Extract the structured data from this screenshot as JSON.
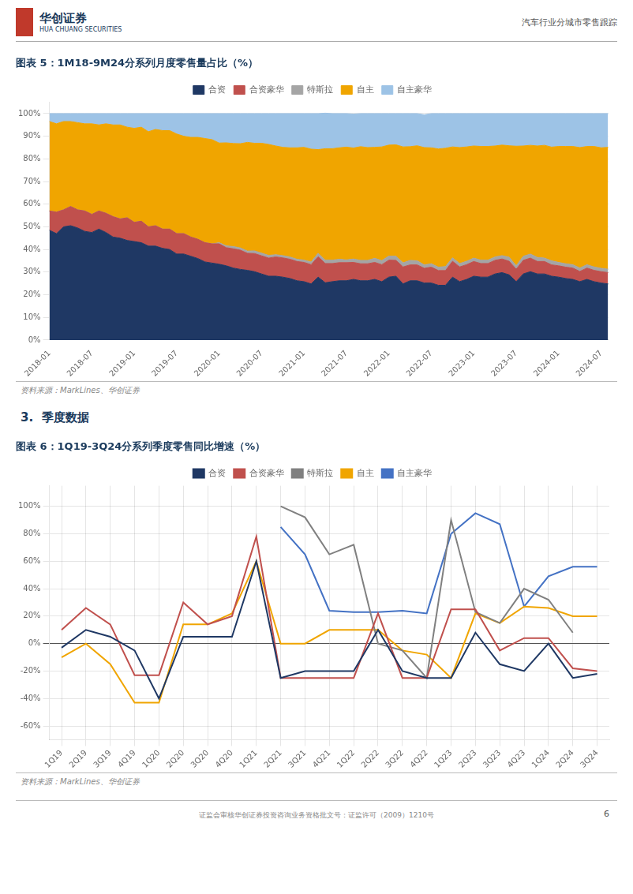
{
  "logo": [
    "华创证券",
    "HUA CHUANG SECURITIES"
  ],
  "header": "汽车行业分城市零售跟踪",
  "section_title": "3.  季度数据",
  "footer": "证监会审核华创证券投资咨询业务资格批文号：证监许可（2009）1210号",
  "page_number": "6",
  "chart_data": [
    {
      "type": "area",
      "title": "图表 5：1M18-9M24分系列月度零售量占比（%）",
      "annotations": [
        "资料来源：MarkLines、华创证券"
      ],
      "stacked": true,
      "legend": "top",
      "grid": "y",
      "categories": [
        "2018-01",
        null,
        null,
        null,
        null,
        null,
        "2018-07",
        null,
        null,
        null,
        null,
        null,
        "2019-01",
        null,
        null,
        null,
        null,
        null,
        "2019-07",
        null,
        null,
        null,
        null,
        null,
        "2020-01",
        null,
        null,
        null,
        null,
        null,
        "2020-07",
        null,
        null,
        null,
        null,
        null,
        "2021-01",
        null,
        null,
        null,
        null,
        null,
        "2021-07",
        null,
        null,
        null,
        null,
        null,
        "2022-01",
        null,
        null,
        null,
        null,
        null,
        "2022-07",
        null,
        null,
        null,
        null,
        null,
        "2023-01",
        null,
        null,
        null,
        null,
        null,
        "2023-07",
        null,
        null,
        null,
        null,
        null,
        "2024-01",
        null,
        null,
        null,
        null,
        null,
        "2024-07",
        null
      ],
      "ylim": [
        0,
        1.05
      ],
      "yticks": [
        {
          "value": 0,
          "label": "0%"
        },
        {
          "value": 0.1,
          "label": "10%"
        },
        {
          "value": 0.2,
          "label": "20%"
        },
        {
          "value": 0.3,
          "label": "30%"
        },
        {
          "value": 0.4,
          "label": "40%"
        },
        {
          "value": 0.5,
          "label": "50%"
        },
        {
          "value": 0.6,
          "label": "60%"
        },
        {
          "value": 0.7,
          "label": "70%"
        },
        {
          "value": 0.8,
          "label": "80%"
        },
        {
          "value": 0.9,
          "label": "90%"
        },
        {
          "value": 1.0,
          "label": "100%"
        }
      ],
      "series": [
        {
          "name": "合资",
          "color": "#1f3864",
          "values": [
            0.485,
            0.47,
            0.5,
            0.505,
            0.495,
            0.48,
            0.475,
            0.49,
            0.475,
            0.455,
            0.45,
            0.44,
            0.435,
            0.43,
            0.415,
            0.415,
            0.405,
            0.4,
            0.38,
            0.38,
            0.37,
            0.36,
            0.345,
            0.34,
            0.335,
            0.328,
            0.318,
            0.312,
            0.308,
            0.302,
            0.292,
            0.282,
            0.282,
            0.278,
            0.272,
            0.262,
            0.258,
            0.248,
            0.278,
            0.253,
            0.258,
            0.262,
            0.262,
            0.268,
            0.262,
            0.262,
            0.268,
            0.258,
            0.278,
            0.282,
            0.248,
            0.262,
            0.262,
            0.252,
            0.252,
            0.242,
            0.242,
            0.278,
            0.258,
            0.268,
            0.282,
            0.278,
            0.278,
            0.292,
            0.298,
            0.288,
            0.258,
            0.292,
            0.302,
            0.292,
            0.292,
            0.282,
            0.278,
            0.272,
            0.268,
            0.258,
            0.268,
            0.258,
            0.252,
            0.248
          ]
        },
        {
          "name": "合资豪华",
          "color": "#c0504d",
          "values": [
            0.085,
            0.095,
            0.075,
            0.085,
            0.08,
            0.09,
            0.08,
            0.08,
            0.085,
            0.09,
            0.085,
            0.1,
            0.085,
            0.095,
            0.085,
            0.09,
            0.085,
            0.09,
            0.09,
            0.09,
            0.085,
            0.085,
            0.085,
            0.085,
            0.09,
            0.08,
            0.085,
            0.085,
            0.075,
            0.08,
            0.08,
            0.08,
            0.085,
            0.085,
            0.085,
            0.085,
            0.085,
            0.085,
            0.09,
            0.085,
            0.08,
            0.08,
            0.08,
            0.075,
            0.075,
            0.075,
            0.075,
            0.075,
            0.075,
            0.07,
            0.075,
            0.07,
            0.07,
            0.065,
            0.07,
            0.065,
            0.065,
            0.07,
            0.065,
            0.065,
            0.065,
            0.06,
            0.06,
            0.06,
            0.06,
            0.06,
            0.055,
            0.06,
            0.06,
            0.055,
            0.055,
            0.05,
            0.05,
            0.05,
            0.05,
            0.045,
            0.05,
            0.05,
            0.05,
            0.05
          ]
        },
        {
          "name": "特斯拉",
          "color": "#a5a5a5",
          "values": [
            0.0,
            0.0,
            0.0,
            0.0,
            0.0,
            0.0,
            0.0,
            0.0,
            0.0,
            0.0,
            0.0,
            0.0,
            0.0,
            0.0,
            0.0,
            0.0,
            0.0,
            0.0,
            0.0,
            0.0,
            0.0,
            0.0,
            0.0,
            0.0,
            0.005,
            0.008,
            0.01,
            0.01,
            0.01,
            0.012,
            0.012,
            0.012,
            0.01,
            0.01,
            0.01,
            0.01,
            0.01,
            0.012,
            0.015,
            0.015,
            0.015,
            0.015,
            0.012,
            0.015,
            0.015,
            0.015,
            0.018,
            0.018,
            0.018,
            0.018,
            0.018,
            0.02,
            0.018,
            0.015,
            0.015,
            0.015,
            0.018,
            0.015,
            0.015,
            0.015,
            0.015,
            0.015,
            0.015,
            0.015,
            0.015,
            0.018,
            0.015,
            0.018,
            0.018,
            0.018,
            0.015,
            0.018,
            0.015,
            0.015,
            0.015,
            0.015,
            0.015,
            0.015,
            0.015,
            0.015
          ]
        },
        {
          "name": "自主",
          "color": "#f0a500",
          "values": [
            0.395,
            0.39,
            0.39,
            0.375,
            0.385,
            0.385,
            0.4,
            0.38,
            0.395,
            0.405,
            0.415,
            0.4,
            0.415,
            0.415,
            0.42,
            0.425,
            0.435,
            0.435,
            0.44,
            0.43,
            0.44,
            0.45,
            0.46,
            0.46,
            0.44,
            0.455,
            0.455,
            0.46,
            0.48,
            0.475,
            0.485,
            0.49,
            0.48,
            0.478,
            0.482,
            0.492,
            0.498,
            0.498,
            0.458,
            0.492,
            0.492,
            0.492,
            0.498,
            0.49,
            0.502,
            0.498,
            0.49,
            0.502,
            0.49,
            0.492,
            0.512,
            0.502,
            0.508,
            0.518,
            0.512,
            0.522,
            0.522,
            0.49,
            0.512,
            0.505,
            0.495,
            0.502,
            0.502,
            0.49,
            0.488,
            0.492,
            0.528,
            0.487,
            0.48,
            0.492,
            0.498,
            0.502,
            0.512,
            0.518,
            0.522,
            0.532,
            0.522,
            0.532,
            0.532,
            0.538
          ]
        },
        {
          "name": "自主豪华",
          "color": "#9dc3e6",
          "values": [
            0.035,
            0.045,
            0.035,
            0.035,
            0.04,
            0.045,
            0.045,
            0.05,
            0.045,
            0.05,
            0.05,
            0.06,
            0.065,
            0.06,
            0.08,
            0.07,
            0.075,
            0.075,
            0.09,
            0.1,
            0.105,
            0.105,
            0.11,
            0.115,
            0.13,
            0.129,
            0.132,
            0.133,
            0.127,
            0.131,
            0.131,
            0.136,
            0.143,
            0.149,
            0.151,
            0.151,
            0.149,
            0.157,
            0.159,
            0.157,
            0.155,
            0.151,
            0.148,
            0.15,
            0.146,
            0.15,
            0.149,
            0.147,
            0.139,
            0.138,
            0.147,
            0.146,
            0.142,
            0.145,
            0.151,
            0.156,
            0.153,
            0.147,
            0.15,
            0.147,
            0.143,
            0.145,
            0.145,
            0.143,
            0.139,
            0.142,
            0.144,
            0.143,
            0.14,
            0.143,
            0.14,
            0.148,
            0.145,
            0.145,
            0.145,
            0.15,
            0.145,
            0.145,
            0.151,
            0.149
          ]
        }
      ]
    },
    {
      "type": "line",
      "title": "图表 6：1Q19-3Q24分系列季度零售同比增速（%）",
      "annotations": [
        "资料来源：MarkLines、华创证券"
      ],
      "legend": "top",
      "grid": true,
      "categories": [
        "1Q19",
        "2Q19",
        "3Q19",
        "4Q19",
        "1Q20",
        "2Q20",
        "3Q20",
        "4Q20",
        "1Q21",
        "2Q21",
        "3Q21",
        "4Q21",
        "1Q22",
        "2Q22",
        "3Q22",
        "4Q22",
        "1Q23",
        "2Q23",
        "3Q23",
        "4Q23",
        "1Q24",
        "2Q24",
        "3Q24"
      ],
      "ylim": [
        -70,
        115
      ],
      "yticks": [
        {
          "value": -60,
          "label": "-60%"
        },
        {
          "value": -40,
          "label": "-40%"
        },
        {
          "value": -20,
          "label": "-20%"
        },
        {
          "value": 0,
          "label": "0%"
        },
        {
          "value": 20,
          "label": "20%"
        },
        {
          "value": 40,
          "label": "40%"
        },
        {
          "value": 60,
          "label": "60%"
        },
        {
          "value": 80,
          "label": "80%"
        },
        {
          "value": 100,
          "label": "100%"
        }
      ],
      "series": [
        {
          "name": "合资",
          "color": "#1f3864",
          "values": [
            -3,
            10,
            5,
            -5,
            -40,
            5,
            5,
            5,
            60,
            -25,
            -20,
            -20,
            -20,
            10,
            -20,
            -25,
            -25,
            8,
            -15,
            -20,
            0,
            -25,
            -22
          ]
        },
        {
          "name": "合资豪华",
          "color": "#c0504d",
          "values": [
            10,
            26,
            14,
            -23,
            -23,
            30,
            14,
            20,
            78,
            -25,
            -25,
            -25,
            -25,
            22,
            -25,
            -25,
            25,
            25,
            -5,
            4,
            4,
            -18,
            -20
          ]
        },
        {
          "name": "特斯拉",
          "color": "#808080",
          "values": [
            null,
            null,
            null,
            null,
            null,
            null,
            null,
            null,
            null,
            100,
            92,
            65,
            72,
            0,
            -5,
            -25,
            90,
            23,
            15,
            40,
            32,
            8,
            null
          ]
        },
        {
          "name": "自主",
          "color": "#f0a500",
          "values": [
            -10,
            0,
            -15,
            -43,
            -43,
            14,
            14,
            22,
            60,
            0,
            0,
            10,
            10,
            10,
            -5,
            -8,
            -25,
            22,
            15,
            27,
            26,
            20,
            20
          ]
        },
        {
          "name": "自主豪华",
          "color": "#4472c4",
          "values": [
            null,
            null,
            null,
            null,
            null,
            null,
            null,
            null,
            null,
            85,
            65,
            24,
            23,
            23,
            24,
            22,
            80,
            95,
            87,
            27,
            49,
            56,
            56
          ]
        }
      ]
    }
  ]
}
